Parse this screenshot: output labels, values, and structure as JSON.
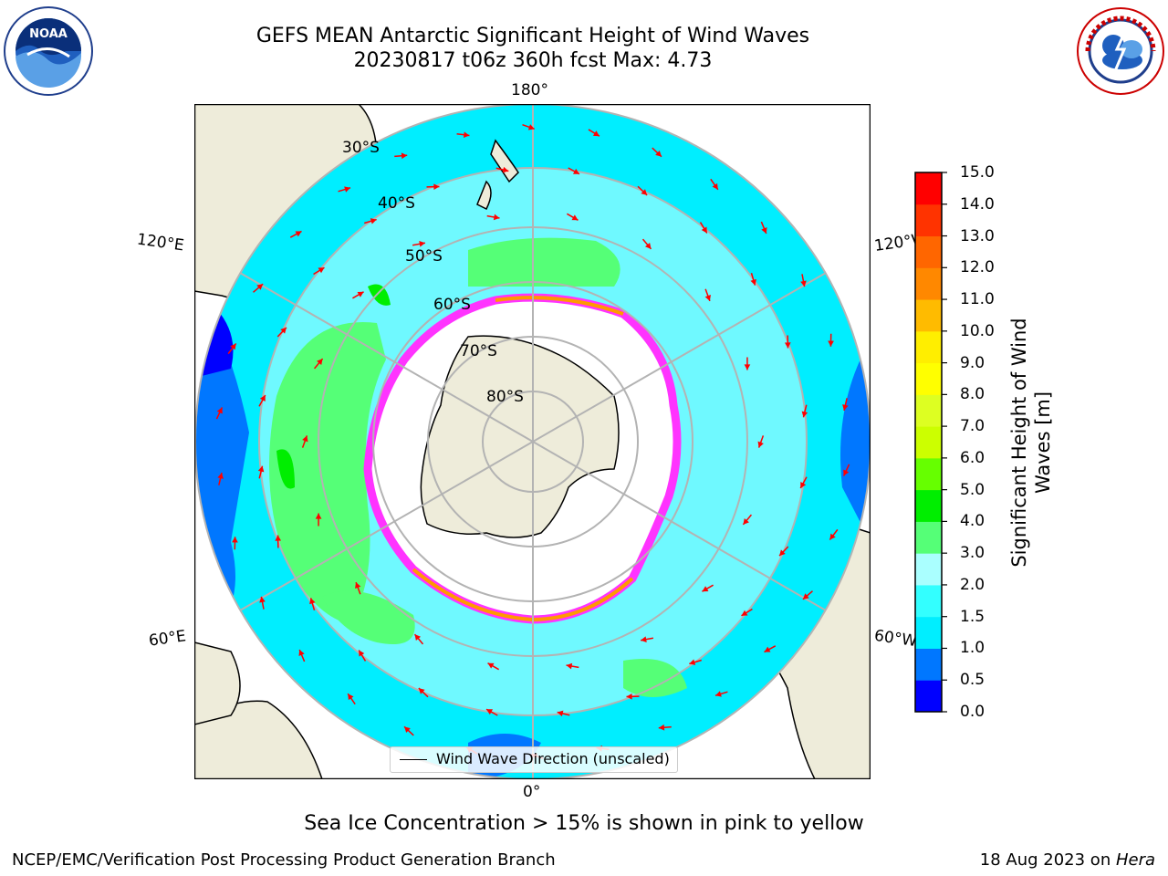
{
  "title": {
    "line1": "GEFS MEAN Antarctic Significant Height of Wind Waves",
    "line2": "20230817 t06z 360h fcst   Max: 4.73"
  },
  "logos": {
    "left": {
      "icon": "noaa-logo",
      "text": "NOAA",
      "ring_text": "NATIONAL OCEANIC AND ATMOSPHERIC ADMINISTRATION · U.S. DEPARTMENT OF COMMERCE"
    },
    "right": {
      "icon": "nws-logo",
      "ring_text": "NATIONAL WEATHER SERVICE"
    }
  },
  "map": {
    "projection": "south-polar-stereographic",
    "longitude_labels": [
      "180°",
      "120°E",
      "120°W",
      "60°E",
      "60°W",
      "0°"
    ],
    "latitude_labels": [
      "30°S",
      "40°S",
      "50°S",
      "60°S",
      "70°S",
      "80°S"
    ],
    "colors": {
      "land": "#eeecda",
      "coast": "#000000",
      "ice_free_ocean": "#00ffff",
      "arrow": "#ff0000",
      "grid": "#b3b3b3"
    }
  },
  "legend": {
    "label": "Wind Wave Direction (unscaled)"
  },
  "colorbar": {
    "label_line1": "Significant Height of Wind",
    "label_line2": "Waves [m]",
    "ticks": [
      "15.0",
      "14.0",
      "13.0",
      "12.0",
      "11.0",
      "10.0",
      "9.0",
      "8.0",
      "7.0",
      "6.0",
      "5.0",
      "4.0",
      "3.0",
      "2.0",
      "1.5",
      "1.0",
      "0.5",
      "0.0"
    ],
    "bins": [
      {
        "from": 0.0,
        "to": 0.5,
        "color": "#0000ff"
      },
      {
        "from": 0.5,
        "to": 1.0,
        "color": "#0077ff"
      },
      {
        "from": 1.0,
        "to": 1.5,
        "color": "#00eeff"
      },
      {
        "from": 1.5,
        "to": 2.0,
        "color": "#33ffff"
      },
      {
        "from": 2.0,
        "to": 3.0,
        "color": "#aaffff"
      },
      {
        "from": 3.0,
        "to": 4.0,
        "color": "#55ff77"
      },
      {
        "from": 4.0,
        "to": 5.0,
        "color": "#00ee00"
      },
      {
        "from": 5.0,
        "to": 6.0,
        "color": "#66ff00"
      },
      {
        "from": 6.0,
        "to": 7.0,
        "color": "#ccff00"
      },
      {
        "from": 7.0,
        "to": 8.0,
        "color": "#ddff22"
      },
      {
        "from": 8.0,
        "to": 9.0,
        "color": "#ffff00"
      },
      {
        "from": 9.0,
        "to": 10.0,
        "color": "#ffee00"
      },
      {
        "from": 10.0,
        "to": 11.0,
        "color": "#ffbb00"
      },
      {
        "from": 11.0,
        "to": 12.0,
        "color": "#ff8800"
      },
      {
        "from": 12.0,
        "to": 13.0,
        "color": "#ff6600"
      },
      {
        "from": 13.0,
        "to": 14.0,
        "color": "#ff3300"
      },
      {
        "from": 14.0,
        "to": 15.0,
        "color": "#ff0000"
      }
    ]
  },
  "note": "Sea Ice Concentration > 15% is shown in pink to yellow",
  "footer": {
    "left": "NCEP/EMC/Verification Post Processing Product Generation Branch",
    "date": "18 Aug 2023 on ",
    "machine": "Hera"
  }
}
